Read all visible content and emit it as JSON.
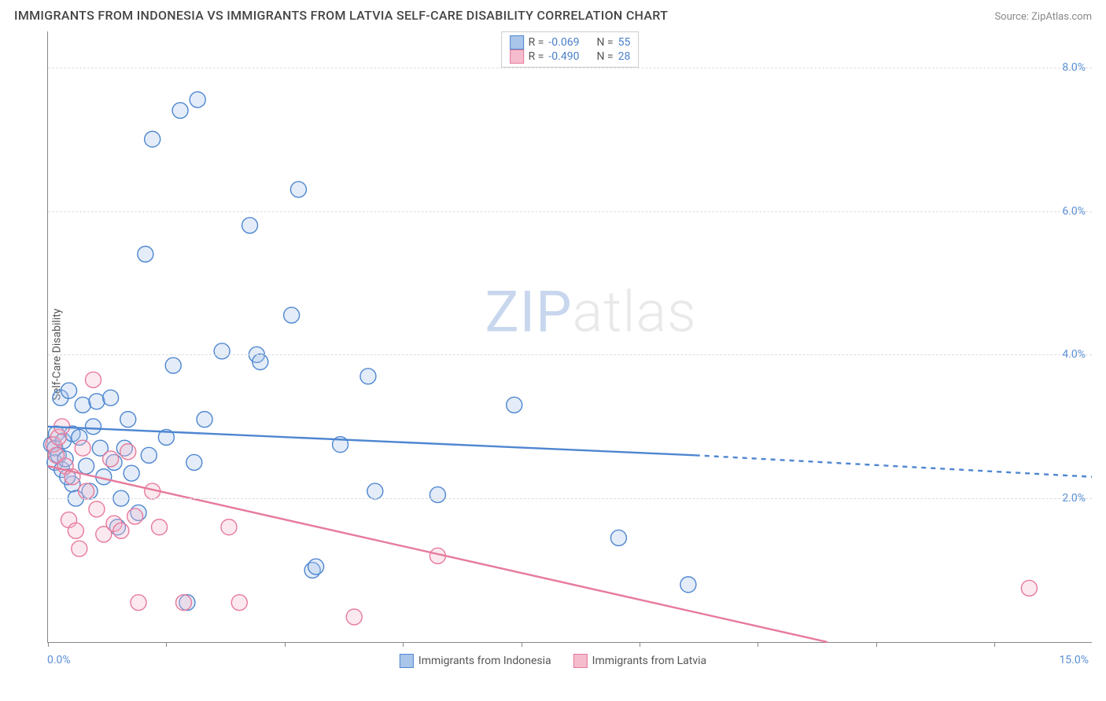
{
  "header": {
    "title": "IMMIGRANTS FROM INDONESIA VS IMMIGRANTS FROM LATVIA SELF-CARE DISABILITY CORRELATION CHART",
    "source_label": "Source:",
    "source_value": "ZipAtlas.com"
  },
  "watermark": {
    "zip": "ZIP",
    "atlas": "atlas"
  },
  "chart": {
    "type": "scatter",
    "ylabel": "Self-Care Disability",
    "xlim": [
      0,
      15
    ],
    "ylim": [
      0,
      8.5
    ],
    "xtick_positions": [
      0,
      1.7,
      3.4,
      5.1,
      6.8,
      8.5,
      10.2,
      11.9,
      13.6
    ],
    "xaxis_min_label": "0.0%",
    "xaxis_max_label": "15.0%",
    "yticks": [
      {
        "v": 2.0,
        "label": "2.0%"
      },
      {
        "v": 4.0,
        "label": "4.0%"
      },
      {
        "v": 6.0,
        "label": "6.0%"
      },
      {
        "v": 8.0,
        "label": "8.0%"
      }
    ],
    "background_color": "#ffffff",
    "grid_color": "#dddddd",
    "axis_color": "#888888",
    "tick_label_color": "#5b8fd6",
    "marker_radius": 10,
    "marker_stroke_width": 1.4,
    "marker_fill_opacity": 0.32,
    "trend_line_width": 2.4,
    "series": [
      {
        "name": "Immigrants from Indonesia",
        "color_stroke": "#4e86d1",
        "color_fill": "#a9c5ea",
        "trend_solid": {
          "x1": 0,
          "y1": 3.0,
          "x2": 9.3,
          "y2": 2.6
        },
        "trend_dash": {
          "x1": 9.3,
          "y1": 2.6,
          "x2": 15,
          "y2": 2.3
        },
        "R": "-0.069",
        "N": "55",
        "points": [
          [
            0.05,
            2.75
          ],
          [
            0.1,
            2.7
          ],
          [
            0.1,
            2.5
          ],
          [
            0.12,
            2.9
          ],
          [
            0.15,
            2.6
          ],
          [
            0.18,
            3.4
          ],
          [
            0.2,
            2.4
          ],
          [
            0.22,
            2.8
          ],
          [
            0.25,
            2.55
          ],
          [
            0.3,
            3.5
          ],
          [
            0.35,
            2.2
          ],
          [
            0.35,
            2.9
          ],
          [
            0.4,
            2.0
          ],
          [
            0.5,
            3.3
          ],
          [
            0.55,
            2.45
          ],
          [
            0.6,
            2.1
          ],
          [
            0.65,
            3.0
          ],
          [
            0.7,
            3.35
          ],
          [
            0.75,
            2.7
          ],
          [
            0.8,
            2.3
          ],
          [
            0.9,
            3.4
          ],
          [
            0.95,
            2.5
          ],
          [
            1.0,
            1.6
          ],
          [
            1.05,
            2.0
          ],
          [
            1.1,
            2.7
          ],
          [
            1.15,
            3.1
          ],
          [
            1.2,
            2.35
          ],
          [
            1.3,
            1.8
          ],
          [
            1.4,
            5.4
          ],
          [
            1.45,
            2.6
          ],
          [
            1.5,
            7.0
          ],
          [
            1.7,
            2.85
          ],
          [
            1.8,
            3.85
          ],
          [
            1.9,
            7.4
          ],
          [
            2.0,
            0.55
          ],
          [
            2.1,
            2.5
          ],
          [
            2.15,
            7.55
          ],
          [
            2.25,
            3.1
          ],
          [
            2.5,
            4.05
          ],
          [
            2.9,
            5.8
          ],
          [
            3.0,
            4.0
          ],
          [
            3.05,
            3.9
          ],
          [
            3.5,
            4.55
          ],
          [
            3.6,
            6.3
          ],
          [
            3.8,
            1.0
          ],
          [
            3.85,
            1.05
          ],
          [
            4.2,
            2.75
          ],
          [
            4.6,
            3.7
          ],
          [
            4.7,
            2.1
          ],
          [
            5.6,
            2.05
          ],
          [
            6.7,
            3.3
          ],
          [
            8.2,
            1.45
          ],
          [
            9.2,
            0.8
          ],
          [
            0.45,
            2.85
          ],
          [
            0.28,
            2.3
          ]
        ]
      },
      {
        "name": "Immigrants from Latvia",
        "color_stroke": "#e77a9b",
        "color_fill": "#f4bccc",
        "trend_solid": {
          "x1": 0,
          "y1": 2.45,
          "x2": 11.2,
          "y2": 0.0
        },
        "trend_dash": null,
        "R": "-0.490",
        "N": "28",
        "points": [
          [
            0.08,
            2.75
          ],
          [
            0.12,
            2.6
          ],
          [
            0.15,
            2.85
          ],
          [
            0.2,
            3.0
          ],
          [
            0.25,
            2.45
          ],
          [
            0.3,
            1.7
          ],
          [
            0.35,
            2.3
          ],
          [
            0.4,
            1.55
          ],
          [
            0.45,
            1.3
          ],
          [
            0.5,
            2.7
          ],
          [
            0.55,
            2.1
          ],
          [
            0.65,
            3.65
          ],
          [
            0.7,
            1.85
          ],
          [
            0.8,
            1.5
          ],
          [
            0.9,
            2.55
          ],
          [
            0.95,
            1.65
          ],
          [
            1.05,
            1.55
          ],
          [
            1.15,
            2.65
          ],
          [
            1.25,
            1.75
          ],
          [
            1.3,
            0.55
          ],
          [
            1.5,
            2.1
          ],
          [
            1.6,
            1.6
          ],
          [
            1.95,
            0.55
          ],
          [
            2.6,
            1.6
          ],
          [
            2.75,
            0.55
          ],
          [
            4.4,
            0.35
          ],
          [
            5.6,
            1.2
          ],
          [
            14.1,
            0.75
          ]
        ]
      }
    ],
    "bottom_legend": [
      {
        "label": "Immigrants from Indonesia",
        "stroke": "#4e86d1",
        "fill": "#a9c5ea"
      },
      {
        "label": "Immigrants from Latvia",
        "stroke": "#e77a9b",
        "fill": "#f4bccc"
      }
    ],
    "top_legend_labels": {
      "R": "R =",
      "N": "N ="
    }
  }
}
